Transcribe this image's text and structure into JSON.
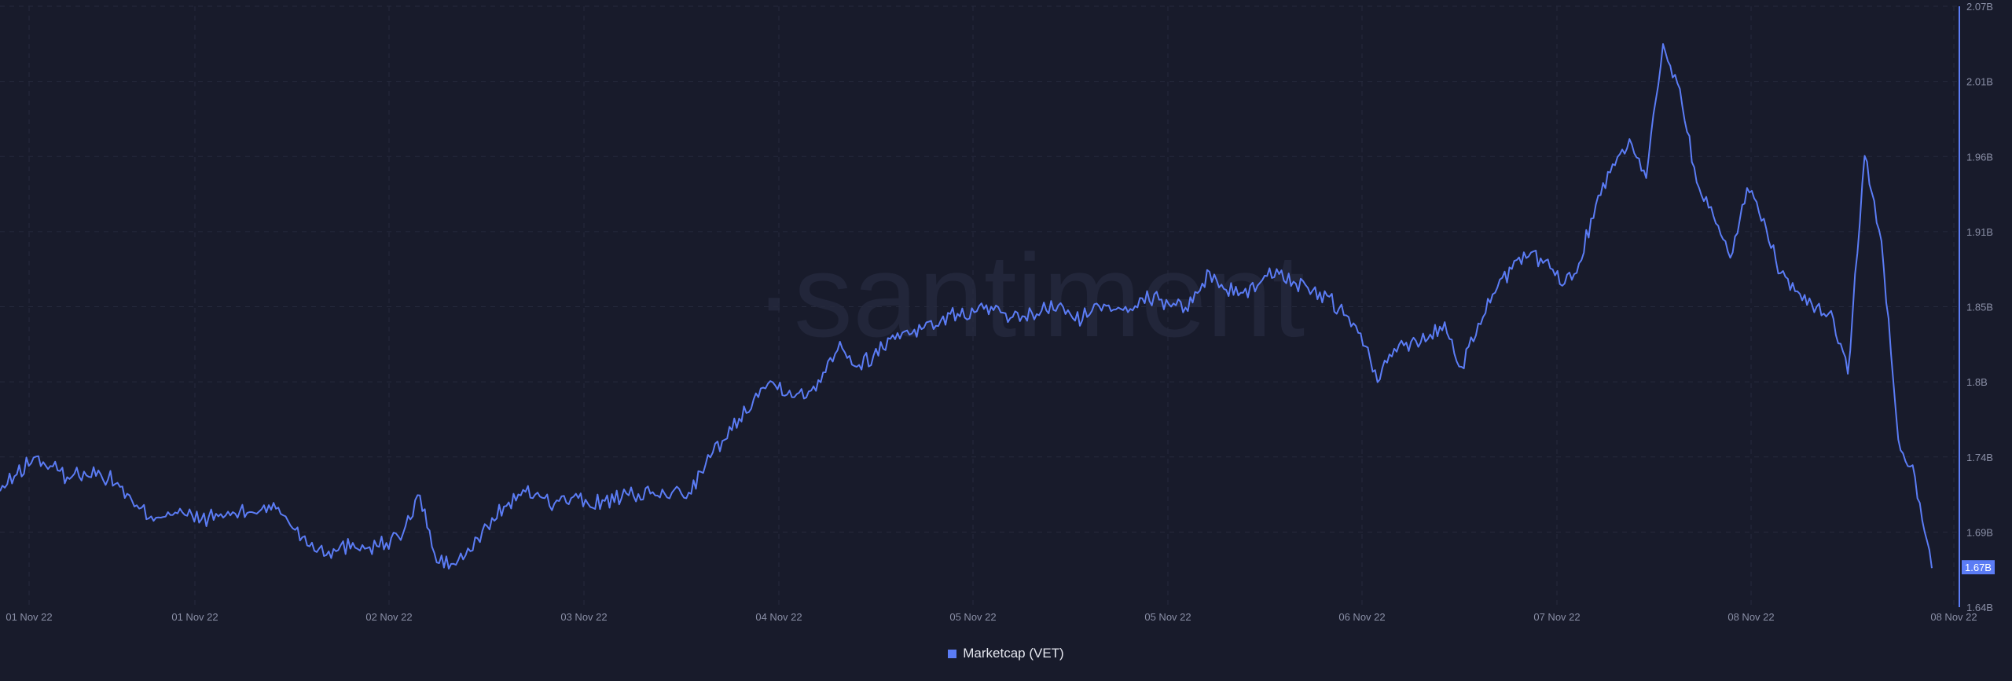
{
  "colors": {
    "background": "#181b2b",
    "line": "#5b7cf5",
    "grid": "#262a3d",
    "tick_text": "#8a8fa6",
    "badge_text": "#ffffff"
  },
  "watermark": "·santiment",
  "legend": {
    "label": "Marketcap (VET)",
    "placement": "bottom-center"
  },
  "last_value_badge": "1.67B",
  "chart_data": {
    "type": "line",
    "title": "",
    "xlabel": "",
    "ylabel": "",
    "grid": true,
    "ylim": [
      1.64,
      2.07
    ],
    "y_unit": "B",
    "y_ticks": [
      "2.07B",
      "2.01B",
      "1.96B",
      "1.91B",
      "1.85B",
      "1.8B",
      "1.74B",
      "1.69B",
      "1.64B"
    ],
    "x_ticks": [
      "01 Nov 22",
      "01 Nov 22",
      "02 Nov 22",
      "03 Nov 22",
      "04 Nov 22",
      "05 Nov 22",
      "05 Nov 22",
      "06 Nov 22",
      "07 Nov 22",
      "08 Nov 22",
      "08 Nov 22"
    ],
    "series": [
      {
        "name": "Marketcap (VET)",
        "x_range": [
          "2022-11-01T08:00",
          "2022-11-08T08:00"
        ],
        "values_billion": [
          1.723,
          1.735,
          1.747,
          1.741,
          1.733,
          1.737,
          1.735,
          1.729,
          1.712,
          1.705,
          1.708,
          1.706,
          1.703,
          1.705,
          1.707,
          1.708,
          1.713,
          1.705,
          1.69,
          1.682,
          1.68,
          1.686,
          1.683,
          1.686,
          1.693,
          1.72,
          1.672,
          1.671,
          1.68,
          1.698,
          1.712,
          1.72,
          1.722,
          1.714,
          1.718,
          1.714,
          1.716,
          1.718,
          1.721,
          1.72,
          1.722,
          1.722,
          1.742,
          1.759,
          1.775,
          1.793,
          1.801,
          1.795,
          1.79,
          1.808,
          1.83,
          1.812,
          1.82,
          1.832,
          1.838,
          1.84,
          1.845,
          1.85,
          1.851,
          1.855,
          1.844,
          1.848,
          1.852,
          1.856,
          1.845,
          1.852,
          1.856,
          1.855,
          1.861,
          1.86,
          1.856,
          1.858,
          1.88,
          1.867,
          1.865,
          1.872,
          1.882,
          1.873,
          1.864,
          1.863,
          1.849,
          1.836,
          1.801,
          1.825,
          1.83,
          1.832,
          1.844,
          1.812,
          1.843,
          1.865,
          1.882,
          1.891,
          1.888,
          1.87,
          1.886,
          1.928,
          1.957,
          1.975,
          1.947,
          2.043,
          2.011,
          1.944,
          1.92,
          1.89,
          1.94,
          1.918,
          1.879,
          1.866,
          1.851,
          1.852,
          1.807,
          1.963,
          1.902,
          1.76,
          1.733,
          1.668
        ]
      }
    ]
  }
}
